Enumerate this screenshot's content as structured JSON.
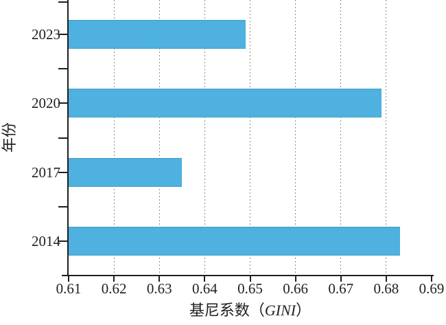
{
  "chart_data": {
    "type": "bar",
    "orientation": "horizontal",
    "title": "",
    "categories": [
      "2023",
      "2020",
      "2017",
      "2014"
    ],
    "values": [
      0.649,
      0.679,
      0.635,
      0.683
    ],
    "xlabel_prefix": "基尼系数（",
    "xlabel_emphasis": "GINI",
    "xlabel_suffix": "）",
    "ylabel": "年份",
    "xlim": [
      0.61,
      0.69
    ],
    "xtick_labels": [
      "0.61",
      "0.62",
      "0.63",
      "0.64",
      "0.65",
      "0.66",
      "0.67",
      "0.68",
      "0.69"
    ],
    "xtick_values": [
      0.61,
      0.62,
      0.63,
      0.64,
      0.65,
      0.66,
      0.67,
      0.68,
      0.69
    ],
    "grid": "vertical-dotted-at-inner-ticks",
    "legend": "none",
    "colors": {
      "bar": "#4EB1E0",
      "grid_dots": "#8F8C85",
      "axis": "#1F1F1F",
      "background": "#FFFFFF"
    }
  }
}
